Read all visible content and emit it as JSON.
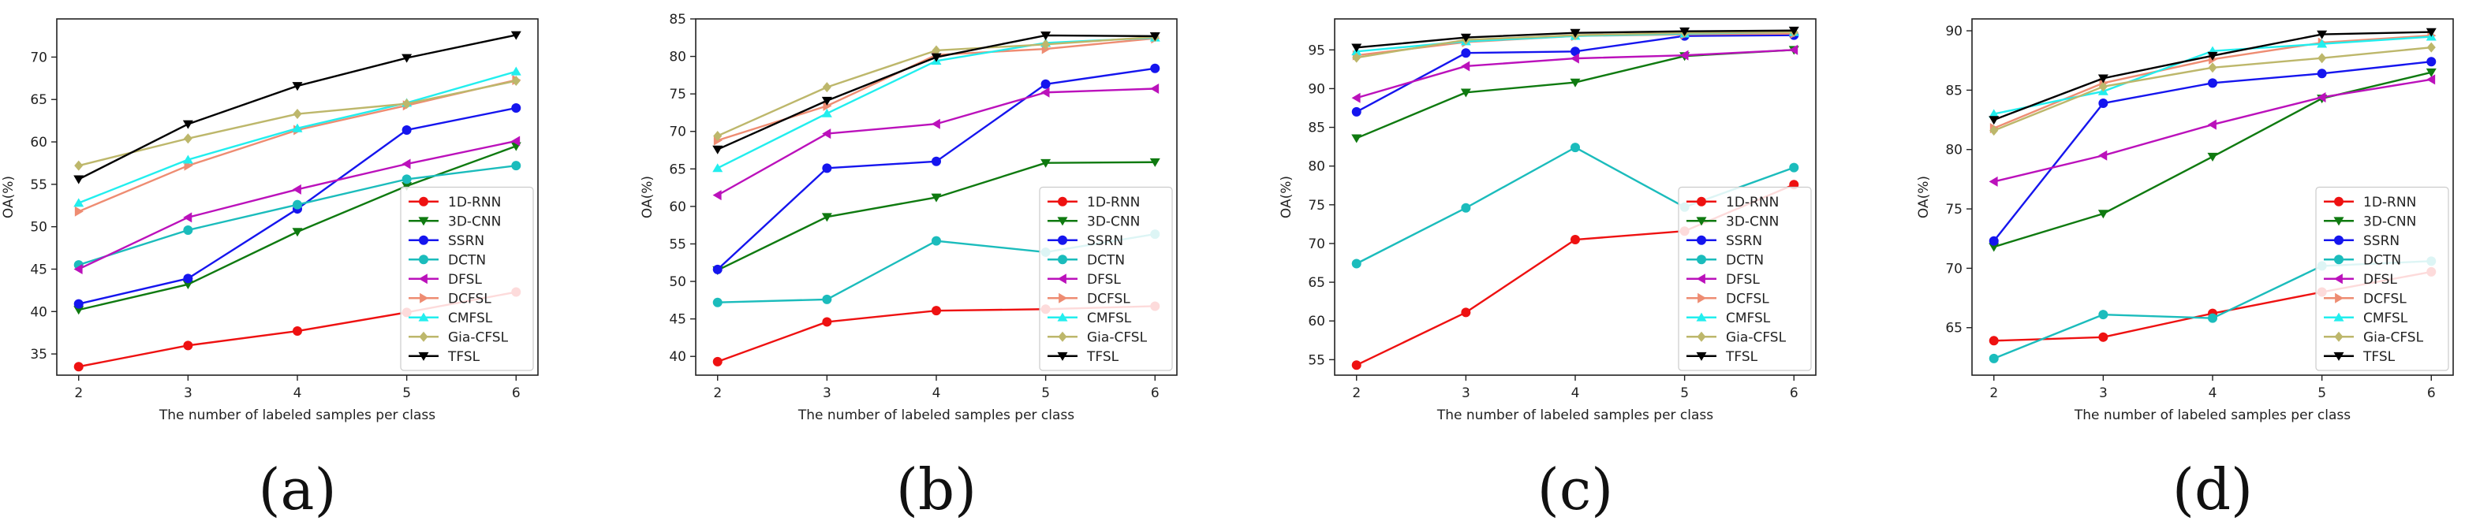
{
  "colors": {
    "1D-RNN": "#ee1111",
    "3D-CNN": "#0f7a10",
    "SSRN": "#1515ee",
    "DCTN": "#1bbcbc",
    "DFSL": "#bb11bb",
    "DCFSL": "#ee8c72",
    "CMFSL": "#22eeee",
    "Gia-CFSL": "#bdb76b",
    "TFSL": "#000000"
  },
  "markers": {
    "1D-RNN": "circle",
    "3D-CNN": "triangle-down",
    "SSRN": "circle",
    "DCTN": "circle",
    "DFSL": "triangle-left",
    "DCFSL": "triangle-right",
    "CMFSL": "triangle-up",
    "Gia-CFSL": "diamond",
    "TFSL": "triangle-down"
  },
  "chart_data": [
    {
      "type": "line",
      "panel_label": "(a)",
      "xlabel": "The number of labeled samples per class",
      "ylabel": "OA(%)",
      "x": [
        2,
        3,
        4,
        5,
        6
      ],
      "xlim": [
        1.8,
        6.2
      ],
      "ylim": [
        32.5,
        74.5
      ],
      "yticks": [
        35,
        40,
        45,
        50,
        55,
        60,
        65,
        70
      ],
      "grid": false,
      "legend_position": "lower-right",
      "series": [
        {
          "name": "1D-RNN",
          "values": [
            33.5,
            36.0,
            37.7,
            39.9,
            42.3
          ]
        },
        {
          "name": "3D-CNN",
          "values": [
            40.2,
            43.2,
            49.4,
            54.8,
            59.5
          ]
        },
        {
          "name": "SSRN",
          "values": [
            40.9,
            43.9,
            52.1,
            61.4,
            64.0
          ]
        },
        {
          "name": "DCTN",
          "values": [
            45.5,
            49.6,
            52.6,
            55.6,
            57.2
          ]
        },
        {
          "name": "DFSL",
          "values": [
            45.0,
            51.1,
            54.4,
            57.4,
            60.1
          ]
        },
        {
          "name": "DCFSL",
          "values": [
            51.8,
            57.2,
            61.4,
            64.3,
            67.3
          ]
        },
        {
          "name": "CMFSL",
          "values": [
            52.8,
            57.9,
            61.6,
            64.6,
            68.3
          ]
        },
        {
          "name": "Gia-CFSL",
          "values": [
            57.2,
            60.4,
            63.3,
            64.5,
            67.2
          ]
        },
        {
          "name": "TFSL",
          "values": [
            55.6,
            62.1,
            66.6,
            69.9,
            72.6
          ]
        }
      ]
    },
    {
      "type": "line",
      "panel_label": "(b)",
      "xlabel": "The number of labeled samples per class",
      "ylabel": "OA(%)",
      "x": [
        2,
        3,
        4,
        5,
        6
      ],
      "xlim": [
        1.8,
        6.2
      ],
      "ylim": [
        37.5,
        85.0
      ],
      "yticks": [
        40,
        45,
        50,
        55,
        60,
        65,
        70,
        75,
        80,
        85
      ],
      "grid": false,
      "legend_position": "lower-right",
      "series": [
        {
          "name": "1D-RNN",
          "values": [
            39.3,
            44.6,
            46.1,
            46.3,
            46.7
          ]
        },
        {
          "name": "3D-CNN",
          "values": [
            51.5,
            58.6,
            61.2,
            65.8,
            65.9
          ]
        },
        {
          "name": "SSRN",
          "values": [
            51.6,
            65.1,
            66.0,
            76.3,
            78.4
          ]
        },
        {
          "name": "DCTN",
          "values": [
            47.2,
            47.6,
            55.4,
            53.9,
            56.3
          ]
        },
        {
          "name": "DFSL",
          "values": [
            61.5,
            69.7,
            71.0,
            75.2,
            75.7
          ]
        },
        {
          "name": "DCFSL",
          "values": [
            68.8,
            73.4,
            80.2,
            81.0,
            82.4
          ]
        },
        {
          "name": "CMFSL",
          "values": [
            65.1,
            72.4,
            79.4,
            81.8,
            82.5
          ]
        },
        {
          "name": "Gia-CFSL",
          "values": [
            69.4,
            75.9,
            80.8,
            81.6,
            82.6
          ]
        },
        {
          "name": "TFSL",
          "values": [
            67.6,
            74.1,
            79.9,
            82.8,
            82.7
          ]
        }
      ]
    },
    {
      "type": "line",
      "panel_label": "(c)",
      "xlabel": "The number of labeled samples per class",
      "ylabel": "OA(%)",
      "x": [
        2,
        3,
        4,
        5,
        6
      ],
      "xlim": [
        1.8,
        6.2
      ],
      "ylim": [
        53.0,
        99.0
      ],
      "yticks": [
        55,
        60,
        65,
        70,
        75,
        80,
        85,
        90,
        95
      ],
      "grid": false,
      "legend_position": "lower-right",
      "series": [
        {
          "name": "1D-RNN",
          "values": [
            54.3,
            61.1,
            70.5,
            71.6,
            77.6
          ]
        },
        {
          "name": "3D-CNN",
          "values": [
            83.6,
            89.5,
            90.8,
            94.2,
            95.0
          ]
        },
        {
          "name": "SSRN",
          "values": [
            87.0,
            94.6,
            94.8,
            96.8,
            96.9
          ]
        },
        {
          "name": "DCTN",
          "values": [
            67.4,
            74.6,
            82.4,
            74.7,
            79.8
          ]
        },
        {
          "name": "DFSL",
          "values": [
            88.8,
            92.9,
            93.9,
            94.3,
            95.0
          ]
        },
        {
          "name": "DCFSL",
          "values": [
            94.3,
            96.0,
            96.8,
            97.0,
            97.1
          ]
        },
        {
          "name": "CMFSL",
          "values": [
            94.8,
            96.1,
            96.8,
            97.1,
            97.3
          ]
        },
        {
          "name": "Gia-CFSL",
          "values": [
            94.0,
            96.3,
            96.9,
            97.2,
            97.3
          ]
        },
        {
          "name": "TFSL",
          "values": [
            95.3,
            96.6,
            97.2,
            97.4,
            97.5
          ]
        }
      ]
    },
    {
      "type": "line",
      "panel_label": "(d)",
      "xlabel": "The number of labeled samples per class",
      "ylabel": "OA(%)",
      "x": [
        2,
        3,
        4,
        5,
        6
      ],
      "xlim": [
        1.8,
        6.2
      ],
      "ylim": [
        61.0,
        91.0
      ],
      "yticks": [
        65,
        70,
        75,
        80,
        85,
        90
      ],
      "grid": false,
      "legend_position": "lower-right",
      "series": [
        {
          "name": "1D-RNN",
          "values": [
            63.9,
            64.2,
            66.2,
            68.0,
            69.7
          ]
        },
        {
          "name": "3D-CNN",
          "values": [
            71.8,
            74.6,
            79.4,
            84.3,
            86.5
          ]
        },
        {
          "name": "SSRN",
          "values": [
            72.3,
            83.9,
            85.6,
            86.4,
            87.4
          ]
        },
        {
          "name": "DCTN",
          "values": [
            62.4,
            66.1,
            65.8,
            70.2,
            70.6
          ]
        },
        {
          "name": "DFSL",
          "values": [
            77.3,
            79.5,
            82.1,
            84.4,
            85.9
          ]
        },
        {
          "name": "DCFSL",
          "values": [
            81.8,
            85.6,
            87.6,
            89.0,
            89.6
          ]
        },
        {
          "name": "CMFSL",
          "values": [
            83.0,
            84.9,
            88.3,
            88.9,
            89.5
          ]
        },
        {
          "name": "Gia-CFSL",
          "values": [
            81.6,
            85.3,
            86.9,
            87.7,
            88.6
          ]
        },
        {
          "name": "TFSL",
          "values": [
            82.5,
            86.0,
            87.9,
            89.7,
            89.9
          ]
        }
      ]
    }
  ]
}
